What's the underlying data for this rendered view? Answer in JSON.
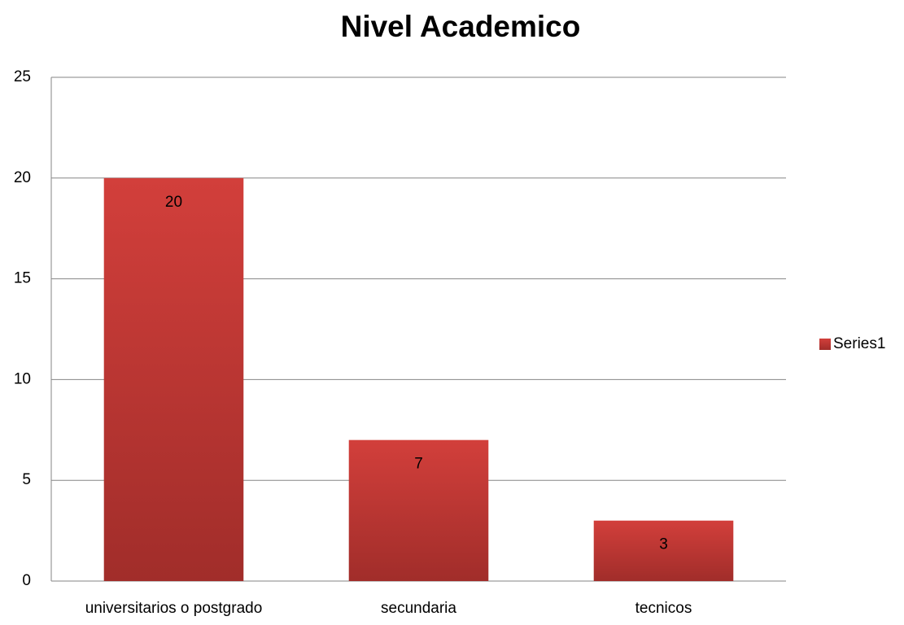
{
  "chart_data": {
    "type": "bar",
    "title": "Nivel Academico",
    "categories": [
      "universitarios o postgrado",
      "secundaria",
      "tecnicos"
    ],
    "series": [
      {
        "name": "Series1",
        "color": "#c0392f",
        "values": [
          20,
          7,
          3
        ]
      }
    ],
    "ylim": [
      0,
      25
    ],
    "yticks": [
      0,
      5,
      10,
      15,
      20,
      25
    ],
    "grid": true,
    "legend": "right"
  }
}
